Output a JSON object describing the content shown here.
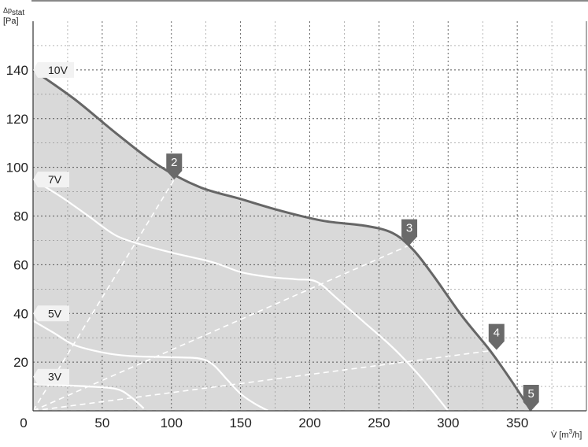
{
  "chart_data": {
    "type": "line",
    "ylabel_symbol": "Δp",
    "ylabel_sub": "stat",
    "ylabel_unit": "[Pa]",
    "xlabel_symbol": "V̇",
    "xlabel_unit_pre": "[m",
    "xlabel_unit_sup": "3",
    "xlabel_unit_post": "/h]",
    "xlim": [
      0,
      400
    ],
    "ylim": [
      0,
      160
    ],
    "x_ticks": [
      0,
      50,
      100,
      150,
      200,
      250,
      300,
      350
    ],
    "y_ticks": [
      20,
      40,
      60,
      80,
      100,
      120,
      140
    ],
    "grid": true,
    "fill_color": "#d9d9d9",
    "max_curve_color": "#666666",
    "voltage_curve_color": "#ffffff",
    "marker_color": "#6a6a6a",
    "series": [
      {
        "name": "10V",
        "points": [
          [
            0,
            140
          ],
          [
            30,
            128
          ],
          [
            60,
            114
          ],
          [
            90,
            101
          ],
          [
            120,
            92
          ],
          [
            150,
            87
          ],
          [
            180,
            82
          ],
          [
            210,
            78
          ],
          [
            240,
            76
          ],
          [
            260,
            73
          ],
          [
            275,
            66
          ],
          [
            290,
            55
          ],
          [
            310,
            39
          ],
          [
            330,
            25
          ],
          [
            345,
            13
          ],
          [
            360,
            0
          ]
        ]
      },
      {
        "name": "7V",
        "points": [
          [
            0,
            95
          ],
          [
            20,
            88
          ],
          [
            40,
            80
          ],
          [
            60,
            72
          ],
          [
            80,
            68
          ],
          [
            100,
            65
          ],
          [
            130,
            61
          ],
          [
            150,
            57
          ],
          [
            170,
            55
          ],
          [
            190,
            54
          ],
          [
            205,
            53
          ],
          [
            220,
            46
          ],
          [
            240,
            36
          ],
          [
            260,
            26
          ],
          [
            280,
            14
          ],
          [
            300,
            0
          ]
        ]
      },
      {
        "name": "5V",
        "points": [
          [
            0,
            37
          ],
          [
            15,
            32
          ],
          [
            30,
            27
          ],
          [
            50,
            24
          ],
          [
            70,
            22.5
          ],
          [
            100,
            22
          ],
          [
            120,
            21.5
          ],
          [
            130,
            19
          ],
          [
            140,
            13
          ],
          [
            150,
            7
          ],
          [
            160,
            3
          ],
          [
            170,
            0
          ]
        ]
      },
      {
        "name": "3V",
        "points": [
          [
            0,
            11
          ],
          [
            20,
            10.5
          ],
          [
            40,
            10
          ],
          [
            60,
            9
          ],
          [
            70,
            6
          ],
          [
            80,
            1
          ]
        ]
      }
    ],
    "operating_lines": [
      {
        "label": "2",
        "end": [
          102,
          95
        ]
      },
      {
        "label": "3",
        "end": [
          272,
          68
        ]
      },
      {
        "label": "4",
        "end": [
          335,
          25
        ]
      },
      {
        "label": "5",
        "end": [
          360,
          0
        ]
      }
    ],
    "voltage_labels": [
      {
        "text": "10V",
        "y": 140
      },
      {
        "text": "7V",
        "y": 95
      },
      {
        "text": "5V",
        "y": 40
      },
      {
        "text": "3V",
        "y": 14
      }
    ]
  }
}
